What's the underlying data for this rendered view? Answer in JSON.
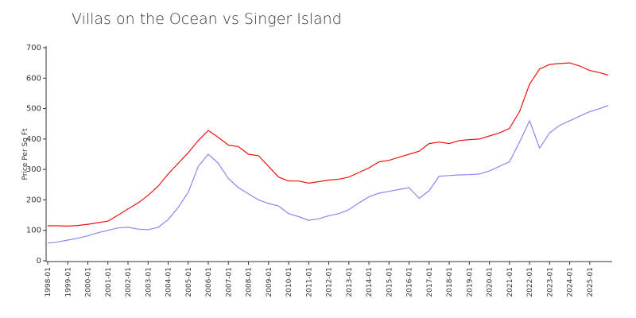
{
  "chart_data": {
    "type": "line",
    "title": "Villas on the Ocean vs Singer Island",
    "ylabel": "Price Per Sq Ft",
    "x": [
      "1998-01",
      "1998-07",
      "1999-01",
      "1999-07",
      "2000-01",
      "2000-07",
      "2001-01",
      "2001-07",
      "2002-01",
      "2002-07",
      "2003-01",
      "2003-07",
      "2004-01",
      "2004-07",
      "2005-01",
      "2005-07",
      "2006-01",
      "2006-07",
      "2007-01",
      "2007-07",
      "2008-01",
      "2008-07",
      "2009-01",
      "2009-07",
      "2010-01",
      "2010-07",
      "2011-01",
      "2011-07",
      "2012-01",
      "2012-07",
      "2013-01",
      "2013-07",
      "2014-01",
      "2014-07",
      "2015-01",
      "2015-07",
      "2016-01",
      "2016-07",
      "2017-01",
      "2017-07",
      "2018-01",
      "2018-07",
      "2019-01",
      "2019-07",
      "2020-01",
      "2020-07",
      "2021-01",
      "2021-07",
      "2022-01",
      "2022-07",
      "2023-01",
      "2023-07",
      "2024-01",
      "2024-07",
      "2025-01",
      "2025-07",
      "2025-12"
    ],
    "series": [
      {
        "color": "#ee1111",
        "values": [
          115,
          115,
          114,
          116,
          120,
          125,
          130,
          150,
          170,
          190,
          215,
          245,
          285,
          320,
          355,
          395,
          428,
          405,
          380,
          375,
          350,
          345,
          310,
          275,
          262,
          262,
          255,
          260,
          265,
          268,
          275,
          290,
          305,
          325,
          330,
          340,
          350,
          360,
          385,
          390,
          385,
          395,
          398,
          400,
          410,
          420,
          435,
          490,
          580,
          630,
          645,
          648,
          650,
          640,
          625,
          618,
          610
        ]
      },
      {
        "color": "#8888ee",
        "values": [
          58,
          62,
          68,
          74,
          82,
          92,
          100,
          108,
          110,
          104,
          102,
          110,
          135,
          175,
          225,
          310,
          350,
          320,
          270,
          240,
          220,
          200,
          188,
          180,
          155,
          145,
          133,
          138,
          148,
          155,
          168,
          190,
          210,
          222,
          228,
          234,
          240,
          205,
          230,
          278,
          280,
          282,
          283,
          285,
          295,
          310,
          325,
          390,
          460,
          370,
          420,
          445,
          460,
          475,
          490,
          500,
          510
        ]
      }
    ],
    "xlim": [
      "1998-01",
      "2025-12"
    ],
    "xticks": [
      "1998-01",
      "1999-01",
      "2000-01",
      "2001-01",
      "2002-01",
      "2003-01",
      "2004-01",
      "2005-01",
      "2006-01",
      "2007-01",
      "2008-01",
      "2009-01",
      "2010-01",
      "2011-01",
      "2012-01",
      "2013-01",
      "2014-01",
      "2015-01",
      "2016-01",
      "2017-01",
      "2018-01",
      "2019-01",
      "2020-01",
      "2021-01",
      "2022-01",
      "2023-01",
      "2024-01",
      "2025-01"
    ],
    "ylim": [
      0,
      700
    ],
    "yticks": [
      0,
      100,
      200,
      300,
      400,
      500,
      600,
      700
    ]
  }
}
